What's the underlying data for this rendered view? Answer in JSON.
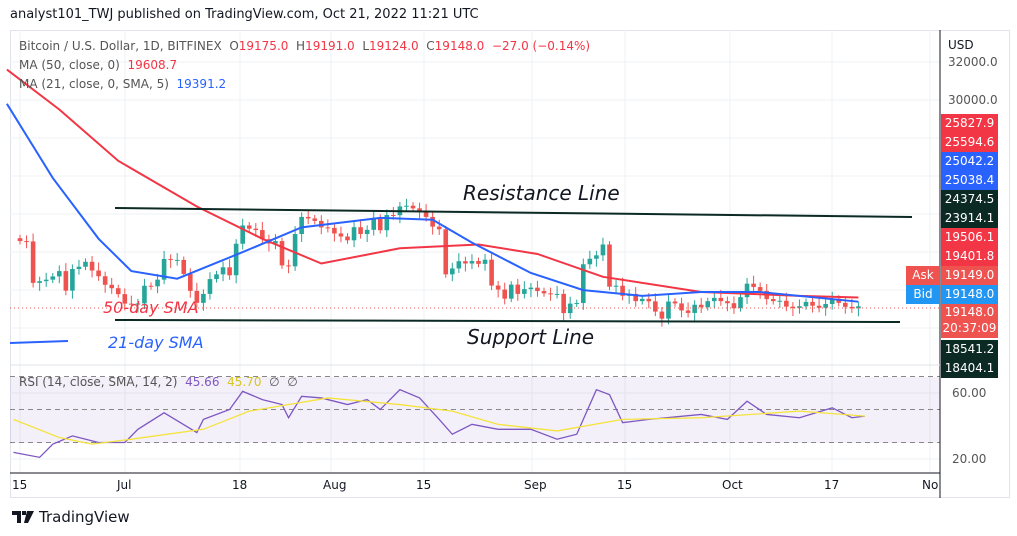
{
  "header": {
    "published": "analyst101_TWJ published on TradingView.com, Oct 21, 2022 11:21 UTC"
  },
  "legend": {
    "symbol": "Bitcoin / U.S. Dollar, 1D, BITFINEX",
    "o_label": "O",
    "open": "19175.0",
    "h_label": "H",
    "high": "19191.0",
    "l_label": "L",
    "low": "19124.0",
    "c_label": "C",
    "close": "19148.0",
    "change": "−27.0 (−0.14%)",
    "ma50": "MA (50, close, 0)",
    "ma50_value": "19608.7",
    "ma21": "MA (21, close, 0, SMA, 5)",
    "ma21_value": "19391.2",
    "rsi": "RSI (14, close, SMA, 14, 2)",
    "rsi_value": "45.66",
    "rsi_sma_value": "45.70",
    "rsi_na1": "∅",
    "rsi_na2": "∅"
  },
  "annotations": {
    "resistance": "Resistance Line",
    "support": "Support Line",
    "sma50": "50-day SMA",
    "sma21": "21-day SMA"
  },
  "price_axis": {
    "currency": "USD",
    "ticks": [
      "32000.0",
      "30000.0"
    ],
    "labels": [
      {
        "text": "25827.9",
        "color": "#f23645"
      },
      {
        "text": "25594.6",
        "color": "#f23645"
      },
      {
        "text": "25042.2",
        "color": "#2962ff"
      },
      {
        "text": "25038.4",
        "color": "#2962ff"
      },
      {
        "text": "24374.5",
        "color": "#0b2a24"
      },
      {
        "text": "23914.1",
        "color": "#0b2a24"
      },
      {
        "text": "19506.1",
        "color": "#f23645"
      },
      {
        "text": "19401.8",
        "color": "#f23645"
      },
      {
        "text": "19149.0",
        "color": "#ef5350",
        "tag": "Ask"
      },
      {
        "text": "19148.0",
        "color": "#2196f3",
        "tag": "Bid"
      },
      {
        "text": "19148.0",
        "color": "#ef5350",
        "sub": "20:37:09"
      },
      {
        "text": "18541.2",
        "color": "#0b2a24"
      },
      {
        "text": "18404.1",
        "color": "#0b2a24"
      }
    ]
  },
  "rsi_axis": {
    "ticks": [
      "60.00",
      "20.00"
    ]
  },
  "time_axis": {
    "ticks": [
      "15",
      "Jul",
      "18",
      "Aug",
      "15",
      "Sep",
      "15",
      "Oct",
      "17",
      "No"
    ]
  },
  "footer": {
    "logo": "TradingView"
  },
  "colors": {
    "up": "#26a69a",
    "down": "#ef5350",
    "ma50": "#f23645",
    "ma21": "#2962ff",
    "rsi": "#7e57c2",
    "rsi_sma": "#f5e33b"
  },
  "chart_data": {
    "type": "candlestick",
    "start_date": "2022-06-15",
    "end_date": "2022-10-21",
    "closes": [
      22580,
      22560,
      20380,
      20470,
      20550,
      20720,
      21000,
      19970,
      21110,
      21230,
      21490,
      21030,
      20730,
      20280,
      20100,
      19790,
      19290,
      19240,
      19300,
      20230,
      20200,
      20550,
      21640,
      21590,
      21590,
      20850,
      19960,
      19330,
      19800,
      20580,
      20830,
      21200,
      20780,
      22440,
      23400,
      23230,
      23160,
      22680,
      22450,
      22580,
      21300,
      21250,
      22950,
      23850,
      23770,
      23640,
      23300,
      23270,
      22980,
      22820,
      22620,
      23310,
      22950,
      23170,
      23800,
      23150,
      23950,
      23940,
      24400,
      24440,
      24300,
      24100,
      23850,
      23340,
      23200,
      20830,
      21140,
      21520,
      21400,
      21530,
      21380,
      21600,
      20240,
      20030,
      19550,
      20290,
      19800,
      20050,
      20130,
      19950,
      19830,
      19800,
      19800,
      18790,
      19290,
      19320,
      21360,
      21650,
      21830,
      22400,
      20180,
      20230,
      19700,
      19800,
      19420,
      19540,
      19410,
      18870,
      18500,
      19400,
      19300,
      18930,
      18800,
      19230,
      19100,
      19420,
      19590,
      19420,
      19310,
      19050,
      19630,
      20340,
      20160,
      19960,
      19530,
      19420,
      19440,
      19130,
      19060,
      19150,
      19380,
      19180,
      19070,
      19270,
      19550,
      19330,
      19120,
      19040,
      19148
    ],
    "ma50": [
      [
        -2,
        31600
      ],
      [
        6,
        29500
      ],
      [
        15,
        26800
      ],
      [
        27,
        24400
      ],
      [
        37,
        22700
      ],
      [
        46,
        21400
      ],
      [
        58,
        22200
      ],
      [
        70,
        22400
      ],
      [
        79,
        21900
      ],
      [
        89,
        20700
      ],
      [
        104,
        19900
      ],
      [
        119,
        19700
      ],
      [
        128,
        19609
      ]
    ],
    "ma21": [
      [
        -2,
        29800
      ],
      [
        5,
        25900
      ],
      [
        12,
        22700
      ],
      [
        17,
        21000
      ],
      [
        24,
        20600
      ],
      [
        34,
        22000
      ],
      [
        43,
        23300
      ],
      [
        55,
        23800
      ],
      [
        63,
        23700
      ],
      [
        69,
        22500
      ],
      [
        78,
        20900
      ],
      [
        86,
        20000
      ],
      [
        95,
        19700
      ],
      [
        104,
        19900
      ],
      [
        113,
        19900
      ],
      [
        128,
        19391
      ]
    ],
    "rsi": [
      [
        -1,
        24
      ],
      [
        3,
        21
      ],
      [
        5,
        29
      ],
      [
        8,
        34
      ],
      [
        12,
        30
      ],
      [
        16,
        30
      ],
      [
        18,
        38
      ],
      [
        22,
        48
      ],
      [
        27,
        36
      ],
      [
        28,
        44
      ],
      [
        32,
        50
      ],
      [
        34,
        61
      ],
      [
        37,
        56
      ],
      [
        40,
        53
      ],
      [
        41,
        45
      ],
      [
        43,
        58
      ],
      [
        46,
        57
      ],
      [
        50,
        53
      ],
      [
        53,
        56
      ],
      [
        55,
        50
      ],
      [
        58,
        62
      ],
      [
        61,
        57
      ],
      [
        64,
        44
      ],
      [
        66,
        35
      ],
      [
        69,
        41
      ],
      [
        73,
        38
      ],
      [
        78,
        38
      ],
      [
        82,
        32
      ],
      [
        85,
        35
      ],
      [
        88,
        62
      ],
      [
        90,
        59
      ],
      [
        92,
        42
      ],
      [
        96,
        44
      ],
      [
        104,
        47
      ],
      [
        108,
        44
      ],
      [
        111,
        55
      ],
      [
        114,
        47
      ],
      [
        119,
        45
      ],
      [
        124,
        51
      ],
      [
        127,
        45
      ],
      [
        129,
        46
      ]
    ],
    "rsi_sma": [
      [
        -1,
        44
      ],
      [
        6,
        33
      ],
      [
        11,
        29
      ],
      [
        17,
        32
      ],
      [
        28,
        38
      ],
      [
        35,
        49
      ],
      [
        47,
        57
      ],
      [
        58,
        53
      ],
      [
        66,
        49
      ],
      [
        73,
        41
      ],
      [
        82,
        37
      ],
      [
        92,
        44
      ],
      [
        104,
        45
      ],
      [
        119,
        49
      ],
      [
        129,
        46
      ]
    ],
    "rsi_bands": [
      70,
      50,
      30
    ],
    "resistance": [
      24300,
      24100
    ],
    "support": [
      18500,
      18450
    ]
  }
}
